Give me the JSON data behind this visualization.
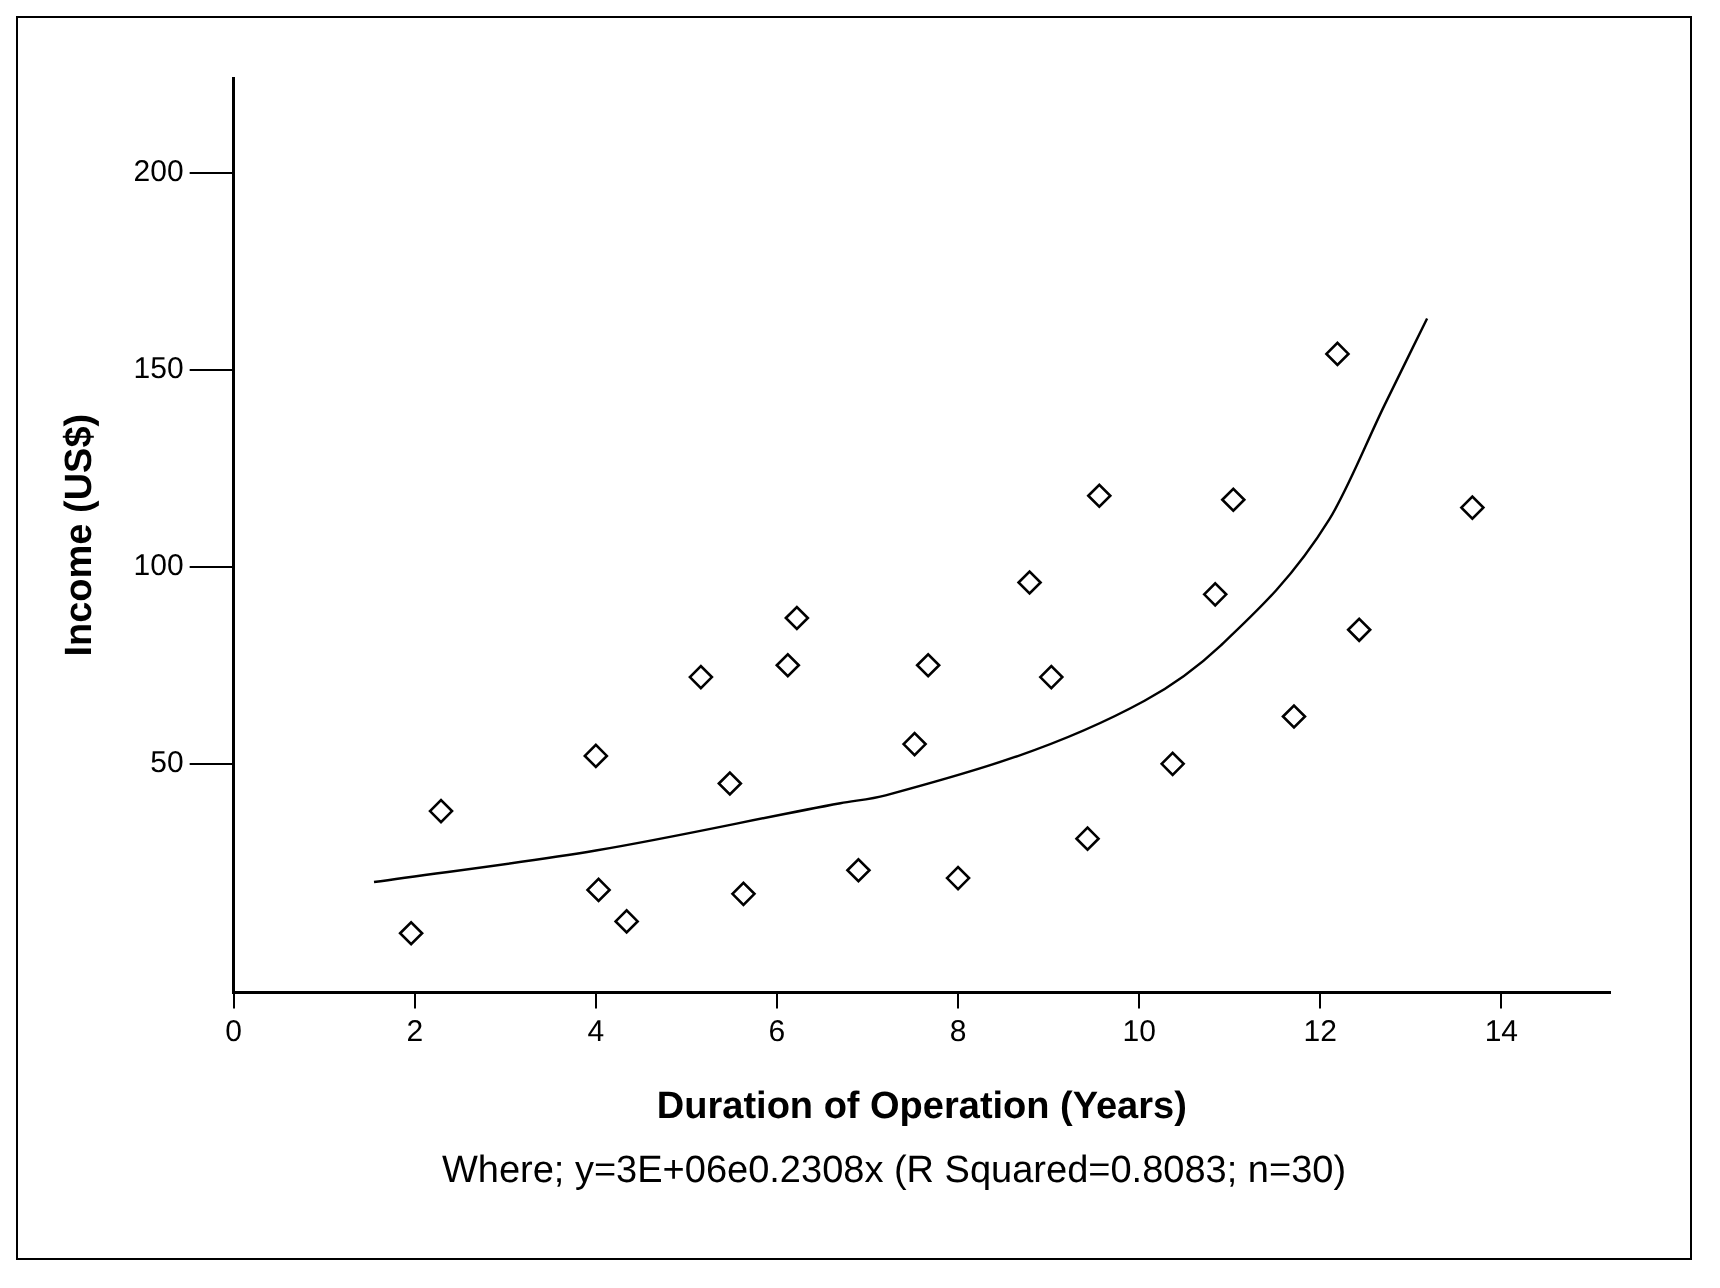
{
  "chart_data": {
    "type": "scatter",
    "xlabel": "Duration of Operation (Years)",
    "ylabel": "Income (US$)",
    "annotations": [
      "Where; y=3E+06e0.2308x (R Squared=0.8083; n=30)"
    ],
    "xlim": [
      0,
      15.2
    ],
    "xticks": [
      0,
      2,
      4,
      6,
      8,
      10,
      12,
      14
    ],
    "ylim": [
      -8,
      224
    ],
    "yticks": [
      50,
      100,
      150,
      200
    ],
    "grid": false,
    "legend": false,
    "marker": "diamond",
    "series": [
      {
        "color": "#000000",
        "x": [
          1.96,
          2.29,
          4.0,
          4.03,
          4.34,
          5.16,
          5.48,
          5.63,
          6.12,
          6.22,
          6.9,
          7.52,
          7.67,
          8.0,
          8.79,
          9.03,
          9.43,
          9.56,
          10.37,
          10.84,
          11.04,
          11.71,
          12.19,
          12.43,
          13.68
        ],
        "values": [
          7,
          38,
          52,
          18,
          10,
          72,
          45,
          17,
          75,
          87,
          23,
          55,
          75,
          21,
          96,
          72,
          31,
          118,
          50,
          93,
          117,
          62,
          154,
          84,
          115
        ]
      },
      {
        "type": "line",
        "color": "#000000",
        "marker": "none",
        "line_style": "solid",
        "x": [
          1.55,
          4.0,
          6.7,
          7.2,
          10.06,
          10.9,
          12.1,
          12.71,
          13.18
        ],
        "values": [
          20,
          28,
          40,
          42,
          66,
          80,
          112,
          141,
          163
        ]
      }
    ]
  }
}
